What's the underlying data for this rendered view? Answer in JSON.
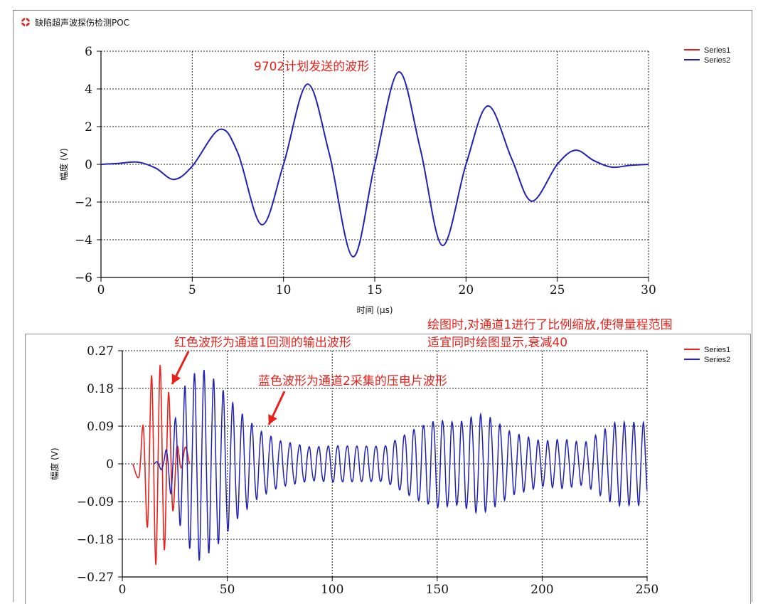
{
  "window": {
    "title": "缺陷超声波探伤检测POC"
  },
  "chart_data": [
    {
      "type": "line",
      "title": "",
      "xlabel": "时间 (μs)",
      "ylabel": "幅度 (V)",
      "xlim": [
        0,
        30
      ],
      "ylim": [
        -6,
        6
      ],
      "x_ticks": [
        0,
        5,
        10,
        15,
        20,
        25,
        30
      ],
      "y_ticks": [
        -6,
        -4,
        -2,
        0,
        2,
        4,
        6
      ],
      "y_tick_labels": [
        "−6",
        "−4",
        "−2",
        "0",
        "2",
        "4",
        "6"
      ],
      "grid": true,
      "legend": "top-right",
      "series": [
        {
          "name": "Series1",
          "color": "#e8211b",
          "x": [],
          "y": []
        },
        {
          "name": "Series2",
          "color": "#2121b4",
          "x": [
            0,
            1,
            2,
            3,
            4,
            5,
            6.5,
            7.5,
            8.8,
            10,
            11.3,
            12.5,
            13.8,
            15,
            16.3,
            17.5,
            18.7,
            20,
            21.2,
            22.5,
            23.6,
            25,
            26,
            27,
            28,
            29,
            30
          ],
          "y": [
            0,
            0.05,
            0.12,
            -0.2,
            -0.8,
            -0.1,
            1.85,
            0.6,
            -3.2,
            0,
            4.25,
            0.6,
            -4.9,
            0,
            4.9,
            0.8,
            -4.3,
            0,
            3.1,
            0.3,
            -1.95,
            0,
            0.75,
            0.2,
            -0.15,
            -0.05,
            0
          ]
        }
      ],
      "annotation": "9702计划发送的波形"
    },
    {
      "type": "line",
      "title": "",
      "xlabel": "",
      "ylabel": "幅度 (V)",
      "xlim": [
        0,
        250
      ],
      "ylim": [
        -0.27,
        0.27
      ],
      "x_ticks": [
        0,
        50,
        100,
        150,
        200,
        250
      ],
      "y_ticks": [
        -0.27,
        -0.18,
        -0.09,
        0,
        0.09,
        0.18,
        0.27
      ],
      "y_tick_labels": [
        "−0.27",
        "−0.18",
        "−0.09",
        "0",
        "0.09",
        "0.18",
        "0.27"
      ],
      "grid": true,
      "legend": "top-right",
      "series": [
        {
          "name": "Series1",
          "color": "#e8211b",
          "description_free": true,
          "x": [
            5,
            8,
            10,
            12,
            14,
            16,
            18,
            20,
            22,
            24,
            26,
            28,
            30,
            32
          ],
          "y": [
            0,
            -0.03,
            0.09,
            -0.15,
            0.21,
            -0.24,
            0.235,
            -0.205,
            0.17,
            -0.11,
            0.04,
            -0.01,
            0.04,
            0
          ]
        },
        {
          "name": "Series2",
          "color": "#2121b4",
          "x": [
            20,
            30,
            37,
            45,
            55,
            65,
            75,
            90,
            100,
            110,
            125,
            140,
            150,
            160,
            170,
            175,
            185,
            200,
            210,
            220,
            235,
            250
          ],
          "y_envelope": [
            0.02,
            0.19,
            0.235,
            0.2,
            0.135,
            0.085,
            0.06,
            0.045,
            0.05,
            0.05,
            0.05,
            0.1,
            0.12,
            0.11,
            0.13,
            0.12,
            0.08,
            0.055,
            0.06,
            0.05,
            0.1,
            0.1
          ]
        }
      ],
      "annotations": [
        "红色波形为通道1回测的输出波形",
        "蓝色波形为通道2采集的压电片波形",
        "绘图时,对通道1进行了比例缩放,使得量程范围",
        "适宜同时绘图显示,衰减40"
      ]
    }
  ]
}
